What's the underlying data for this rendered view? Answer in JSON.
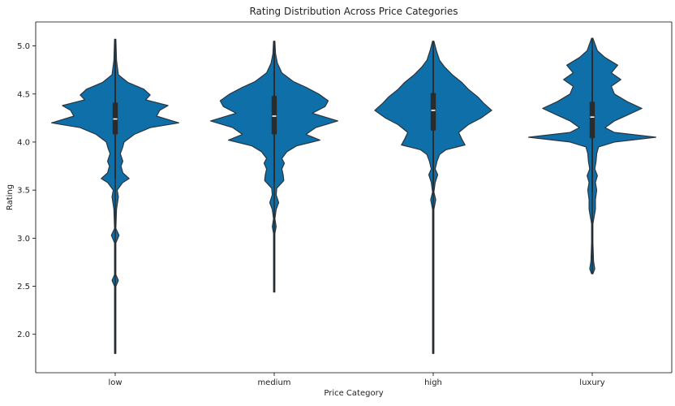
{
  "chart_data": {
    "type": "violin",
    "title": "Rating Distribution Across Price Categories",
    "xlabel": "Price Category",
    "ylabel": "Rating",
    "categories": [
      "low",
      "medium",
      "high",
      "luxury"
    ],
    "ylim": [
      1.6,
      5.25
    ],
    "yticks": [
      "2.0",
      "2.5",
      "3.0",
      "3.5",
      "4.0",
      "4.5",
      "5.0"
    ],
    "grid": false,
    "colors": {
      "fill": "#0f6fa8",
      "edge": "#283540",
      "box": "#2b2b2b",
      "median": "#ffffff",
      "axis": "#000000"
    },
    "violins": [
      {
        "category": "low",
        "min": 1.8,
        "max": 5.07,
        "quartiles": {
          "q1": 4.08,
          "median": 4.24,
          "q3": 4.41
        },
        "whisker_low": 3.62,
        "whisker_high": 4.86,
        "density": [
          [
            1.8,
            0.01
          ],
          [
            2.5,
            0.01
          ],
          [
            2.56,
            0.05
          ],
          [
            2.62,
            0.01
          ],
          [
            2.95,
            0.01
          ],
          [
            3.03,
            0.06
          ],
          [
            3.1,
            0.01
          ],
          [
            3.3,
            0.02
          ],
          [
            3.43,
            0.05
          ],
          [
            3.5,
            0.03
          ],
          [
            3.58,
            0.12
          ],
          [
            3.62,
            0.22
          ],
          [
            3.68,
            0.12
          ],
          [
            3.75,
            0.09
          ],
          [
            3.8,
            0.12
          ],
          [
            3.88,
            0.08
          ],
          [
            3.93,
            0.11
          ],
          [
            4.0,
            0.14
          ],
          [
            4.08,
            0.3
          ],
          [
            4.15,
            0.55
          ],
          [
            4.2,
            1.0
          ],
          [
            4.27,
            0.65
          ],
          [
            4.33,
            0.7
          ],
          [
            4.38,
            0.83
          ],
          [
            4.44,
            0.48
          ],
          [
            4.49,
            0.55
          ],
          [
            4.55,
            0.45
          ],
          [
            4.62,
            0.2
          ],
          [
            4.7,
            0.05
          ],
          [
            4.85,
            0.02
          ],
          [
            5.07,
            0.01
          ]
        ]
      },
      {
        "category": "medium",
        "min": 2.44,
        "max": 5.05,
        "quartiles": {
          "q1": 4.08,
          "median": 4.27,
          "q3": 4.48
        },
        "whisker_low": 3.58,
        "whisker_high": 4.92,
        "density": [
          [
            2.44,
            0.01
          ],
          [
            3.05,
            0.01
          ],
          [
            3.12,
            0.03
          ],
          [
            3.2,
            0.01
          ],
          [
            3.3,
            0.03
          ],
          [
            3.37,
            0.07
          ],
          [
            3.45,
            0.03
          ],
          [
            3.52,
            0.04
          ],
          [
            3.6,
            0.15
          ],
          [
            3.66,
            0.14
          ],
          [
            3.72,
            0.12
          ],
          [
            3.78,
            0.16
          ],
          [
            3.83,
            0.12
          ],
          [
            3.9,
            0.2
          ],
          [
            3.96,
            0.35
          ],
          [
            4.02,
            0.72
          ],
          [
            4.08,
            0.5
          ],
          [
            4.15,
            0.65
          ],
          [
            4.22,
            1.0
          ],
          [
            4.3,
            0.6
          ],
          [
            4.37,
            0.8
          ],
          [
            4.43,
            0.85
          ],
          [
            4.5,
            0.7
          ],
          [
            4.57,
            0.5
          ],
          [
            4.63,
            0.3
          ],
          [
            4.72,
            0.12
          ],
          [
            4.82,
            0.05
          ],
          [
            4.92,
            0.02
          ],
          [
            5.05,
            0.01
          ]
        ]
      },
      {
        "category": "high",
        "min": 1.8,
        "max": 5.05,
        "quartiles": {
          "q1": 4.12,
          "median": 4.33,
          "q3": 4.51
        },
        "whisker_low": 3.55,
        "whisker_high": 4.96,
        "density": [
          [
            1.8,
            0.01
          ],
          [
            3.3,
            0.01
          ],
          [
            3.4,
            0.04
          ],
          [
            3.48,
            0.01
          ],
          [
            3.58,
            0.03
          ],
          [
            3.66,
            0.07
          ],
          [
            3.72,
            0.03
          ],
          [
            3.8,
            0.06
          ],
          [
            3.87,
            0.1
          ],
          [
            3.92,
            0.2
          ],
          [
            3.97,
            0.5
          ],
          [
            4.03,
            0.45
          ],
          [
            4.1,
            0.4
          ],
          [
            4.18,
            0.55
          ],
          [
            4.25,
            0.75
          ],
          [
            4.33,
            0.92
          ],
          [
            4.4,
            0.8
          ],
          [
            4.47,
            0.7
          ],
          [
            4.55,
            0.55
          ],
          [
            4.62,
            0.45
          ],
          [
            4.7,
            0.3
          ],
          [
            4.78,
            0.18
          ],
          [
            4.85,
            0.1
          ],
          [
            4.95,
            0.05
          ],
          [
            5.05,
            0.01
          ]
        ]
      },
      {
        "category": "luxury",
        "min": 2.63,
        "max": 5.08,
        "quartiles": {
          "q1": 4.04,
          "median": 4.26,
          "q3": 4.42
        },
        "whisker_low": 3.48,
        "whisker_high": 4.95,
        "density": [
          [
            2.63,
            0.01
          ],
          [
            2.68,
            0.04
          ],
          [
            2.76,
            0.02
          ],
          [
            2.95,
            0.01
          ],
          [
            3.15,
            0.01
          ],
          [
            3.3,
            0.05
          ],
          [
            3.4,
            0.05
          ],
          [
            3.5,
            0.07
          ],
          [
            3.58,
            0.05
          ],
          [
            3.65,
            0.08
          ],
          [
            3.72,
            0.04
          ],
          [
            3.8,
            0.06
          ],
          [
            3.88,
            0.07
          ],
          [
            3.95,
            0.1
          ],
          [
            4.0,
            0.35
          ],
          [
            4.05,
            1.0
          ],
          [
            4.1,
            0.35
          ],
          [
            4.15,
            0.2
          ],
          [
            4.22,
            0.35
          ],
          [
            4.28,
            0.55
          ],
          [
            4.35,
            0.78
          ],
          [
            4.42,
            0.55
          ],
          [
            4.5,
            0.35
          ],
          [
            4.58,
            0.3
          ],
          [
            4.65,
            0.45
          ],
          [
            4.72,
            0.3
          ],
          [
            4.8,
            0.4
          ],
          [
            4.88,
            0.2
          ],
          [
            4.95,
            0.08
          ],
          [
            5.08,
            0.01
          ]
        ]
      }
    ]
  }
}
